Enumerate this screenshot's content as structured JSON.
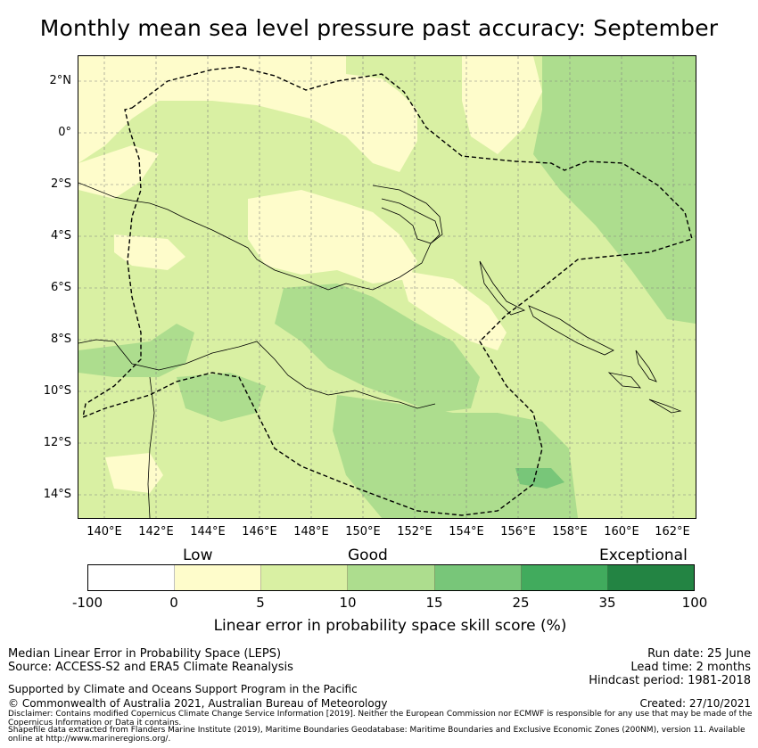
{
  "title": "Monthly mean sea level pressure past accuracy: September",
  "map": {
    "lat_labels": [
      "2°N",
      "0°",
      "2°S",
      "4°S",
      "6°S",
      "8°S",
      "10°S",
      "12°S",
      "14°S"
    ],
    "lon_labels": [
      "140°E",
      "142°E",
      "144°E",
      "146°E",
      "148°E",
      "150°E",
      "152°E",
      "154°E",
      "156°E",
      "158°E",
      "160°E",
      "162°E"
    ]
  },
  "legend": {
    "categories": [
      "Low",
      "Good",
      "Exceptional"
    ],
    "ticks": [
      "-100",
      "0",
      "5",
      "10",
      "15",
      "25",
      "35",
      "100"
    ],
    "colors": [
      "#ffffff",
      "#fefccb",
      "#d9f0a3",
      "#addd8e",
      "#78c679",
      "#41ab5d",
      "#238443"
    ],
    "title": "Linear error in probability space skill score (%)"
  },
  "footer": {
    "left_line1": "Median Linear Error in Probability Space (LEPS)",
    "left_line2": "Source: ACCESS-S2 and ERA5 Climate Reanalysis",
    "support": "Supported by Climate and Oceans Support Program in the Pacific",
    "copyright": "© Commonwealth of Australia 2021, Australian Bureau of Meteorology",
    "run_date": "Run date: 25 June",
    "lead_time": "Lead time: 2 months",
    "hindcast": "Hindcast period: 1981-2018",
    "created": "Created: 27/10/2021",
    "disclaimer": "Disclaimer: Contains modified Copernicus Climate Change Service Information [2019]. Neither the European Commission nor ECMWF is responsible for any use that may be made of the Copernicus Information or Data it contains.",
    "shapefile": "Shapefile data extracted from Flanders Marine Institute (2019), Maritime Boundaries Geodatabase: Maritime Boundaries and Exclusive Economic Zones (200NM), version 11. Available online at http://www.marineregions.org/."
  }
}
